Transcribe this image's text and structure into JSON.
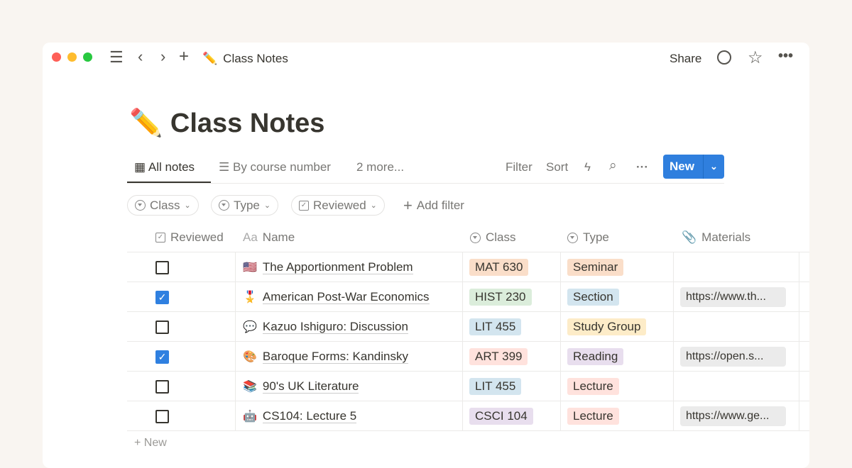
{
  "window": {
    "title": "Class Notes",
    "emoji": "✏️",
    "share": "Share"
  },
  "page": {
    "title": "Class Notes",
    "emoji": "✏️"
  },
  "views": [
    {
      "label": "All notes",
      "icon": "table-icon"
    },
    {
      "label": "By course number",
      "icon": "list-icon"
    },
    {
      "label": "2 more..."
    }
  ],
  "toolbar": {
    "filter": "Filter",
    "sort": "Sort",
    "new": "New"
  },
  "filters": [
    {
      "label": "Class"
    },
    {
      "label": "Type"
    },
    {
      "label": "Reviewed"
    }
  ],
  "add_filter": "Add filter",
  "columns": {
    "reviewed": "Reviewed",
    "name_prefix": "Aa",
    "name": "Name",
    "class": "Class",
    "type": "Type",
    "materials": "Materials"
  },
  "colors": {
    "accent": "#2f7fde",
    "orange": "#fadec9",
    "green": "#dbeddb",
    "blue": "#d3e5ef",
    "red": "#ffe2dd",
    "purple": "#e8deee",
    "yellow": "#fdecc8"
  },
  "rows": [
    {
      "reviewed": false,
      "emoji": "🇺🇸",
      "name": "The Apportionment Problem",
      "class": "MAT 630",
      "class_color": "orange",
      "type": "Seminar",
      "type_color": "orange",
      "materials": ""
    },
    {
      "reviewed": true,
      "emoji": "🎖️",
      "name": "American Post-War Economics",
      "class": "HIST 230",
      "class_color": "green",
      "type": "Section",
      "type_color": "blue",
      "materials": "https://www.th..."
    },
    {
      "reviewed": false,
      "emoji": "💬",
      "name": "Kazuo Ishiguro: Discussion",
      "class": "LIT 455",
      "class_color": "blue",
      "type": "Study Group",
      "type_color": "yellow",
      "materials": ""
    },
    {
      "reviewed": true,
      "emoji": "🎨",
      "name": "Baroque Forms: Kandinsky",
      "class": "ART 399",
      "class_color": "red",
      "type": "Reading",
      "type_color": "purple",
      "materials": "https://open.s..."
    },
    {
      "reviewed": false,
      "emoji": "📚",
      "name": "90's UK Literature",
      "class": "LIT 455",
      "class_color": "blue",
      "type": "Lecture",
      "type_color": "red",
      "materials": ""
    },
    {
      "reviewed": false,
      "emoji": "🤖",
      "name": "CS104: Lecture 5",
      "class": "CSCI 104",
      "class_color": "purple",
      "type": "Lecture",
      "type_color": "red",
      "materials": "https://www.ge..."
    }
  ],
  "new_row": "New"
}
